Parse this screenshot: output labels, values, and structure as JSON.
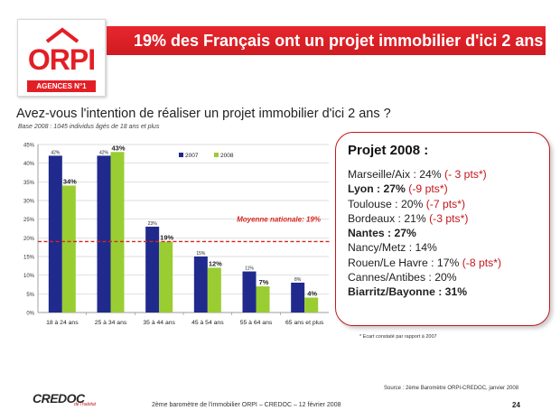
{
  "header": {
    "logo_word": "ORPI",
    "logo_sub": "AGENCES N°1",
    "title": "19% des Français ont un projet immobilier d'ici 2 ans",
    "brand_color": "#e21f26"
  },
  "question": "Avez-vous l'intention de réaliser un projet immobilier d'ici 2 ans ?",
  "base_note": "Base 2008 : 1045 individus âgés de 18 ans et plus",
  "chart_data": {
    "type": "bar",
    "categories": [
      "18 à 24 ans",
      "25 à 34 ans",
      "35 à 44 ans",
      "45 à 54 ans",
      "55 à 64 ans",
      "65 ans et plus"
    ],
    "series": [
      {
        "name": "2007",
        "values": [
          42,
          42,
          23,
          15,
          11,
          8
        ],
        "labels": [
          "42%",
          "42%",
          "23%",
          "15%",
          "11%",
          "8%"
        ],
        "color": "#1f2a8c"
      },
      {
        "name": "2008",
        "values": [
          34,
          43,
          19,
          12,
          7,
          4
        ],
        "labels": [
          "34%",
          "43%",
          "19%",
          "12%",
          "7%",
          "4%"
        ],
        "color": "#9acd32"
      }
    ],
    "yticks": [
      "0%",
      "5%",
      "10%",
      "15%",
      "20%",
      "25%",
      "30%",
      "35%",
      "40%",
      "45%"
    ],
    "ylim": [
      0,
      45
    ],
    "reference_line": {
      "value": 19,
      "label": "Moyenne nationale: 19%",
      "color": "#d7261e"
    },
    "legend_position": "top-center",
    "grid": true
  },
  "projet": {
    "title": "Projet 2008 :",
    "lines": [
      {
        "text": "Marseille/Aix : 24% ",
        "delta": "(- 3 pts*)",
        "bold": false
      },
      {
        "text": "Lyon : 27% ",
        "delta": "(-9 pts*)",
        "bold": true
      },
      {
        "text": "Toulouse : 20% ",
        "delta": "(-7 pts*)",
        "bold": false
      },
      {
        "text": "Bordeaux : 21% ",
        "delta": "(-3 pts*)",
        "bold": false
      },
      {
        "text": "Nantes : 27%",
        "delta": "",
        "bold": true
      },
      {
        "text": "Nancy/Metz : 14%",
        "delta": "",
        "bold": false
      },
      {
        "text": "Rouen/Le Havre : 17% ",
        "delta": "(-8 pts*)",
        "bold": false
      },
      {
        "text": "Cannes/Antibes : 20%",
        "delta": "",
        "bold": false
      },
      {
        "text": "Biarritz/Bayonne : 31%",
        "delta": "",
        "bold": true
      }
    ],
    "footnote": "* Ecart constaté par rapport à 2007"
  },
  "footer": {
    "source": "Source : 2ème Baromètre ORPI-CREDOC, janvier 2008",
    "text": "2ème baromètre de l'immobilier ORPI – CREDOC – 12 février 2008",
    "page": "24",
    "credoc": "CREDOC",
    "credoc_sub": "de l'habitat"
  }
}
